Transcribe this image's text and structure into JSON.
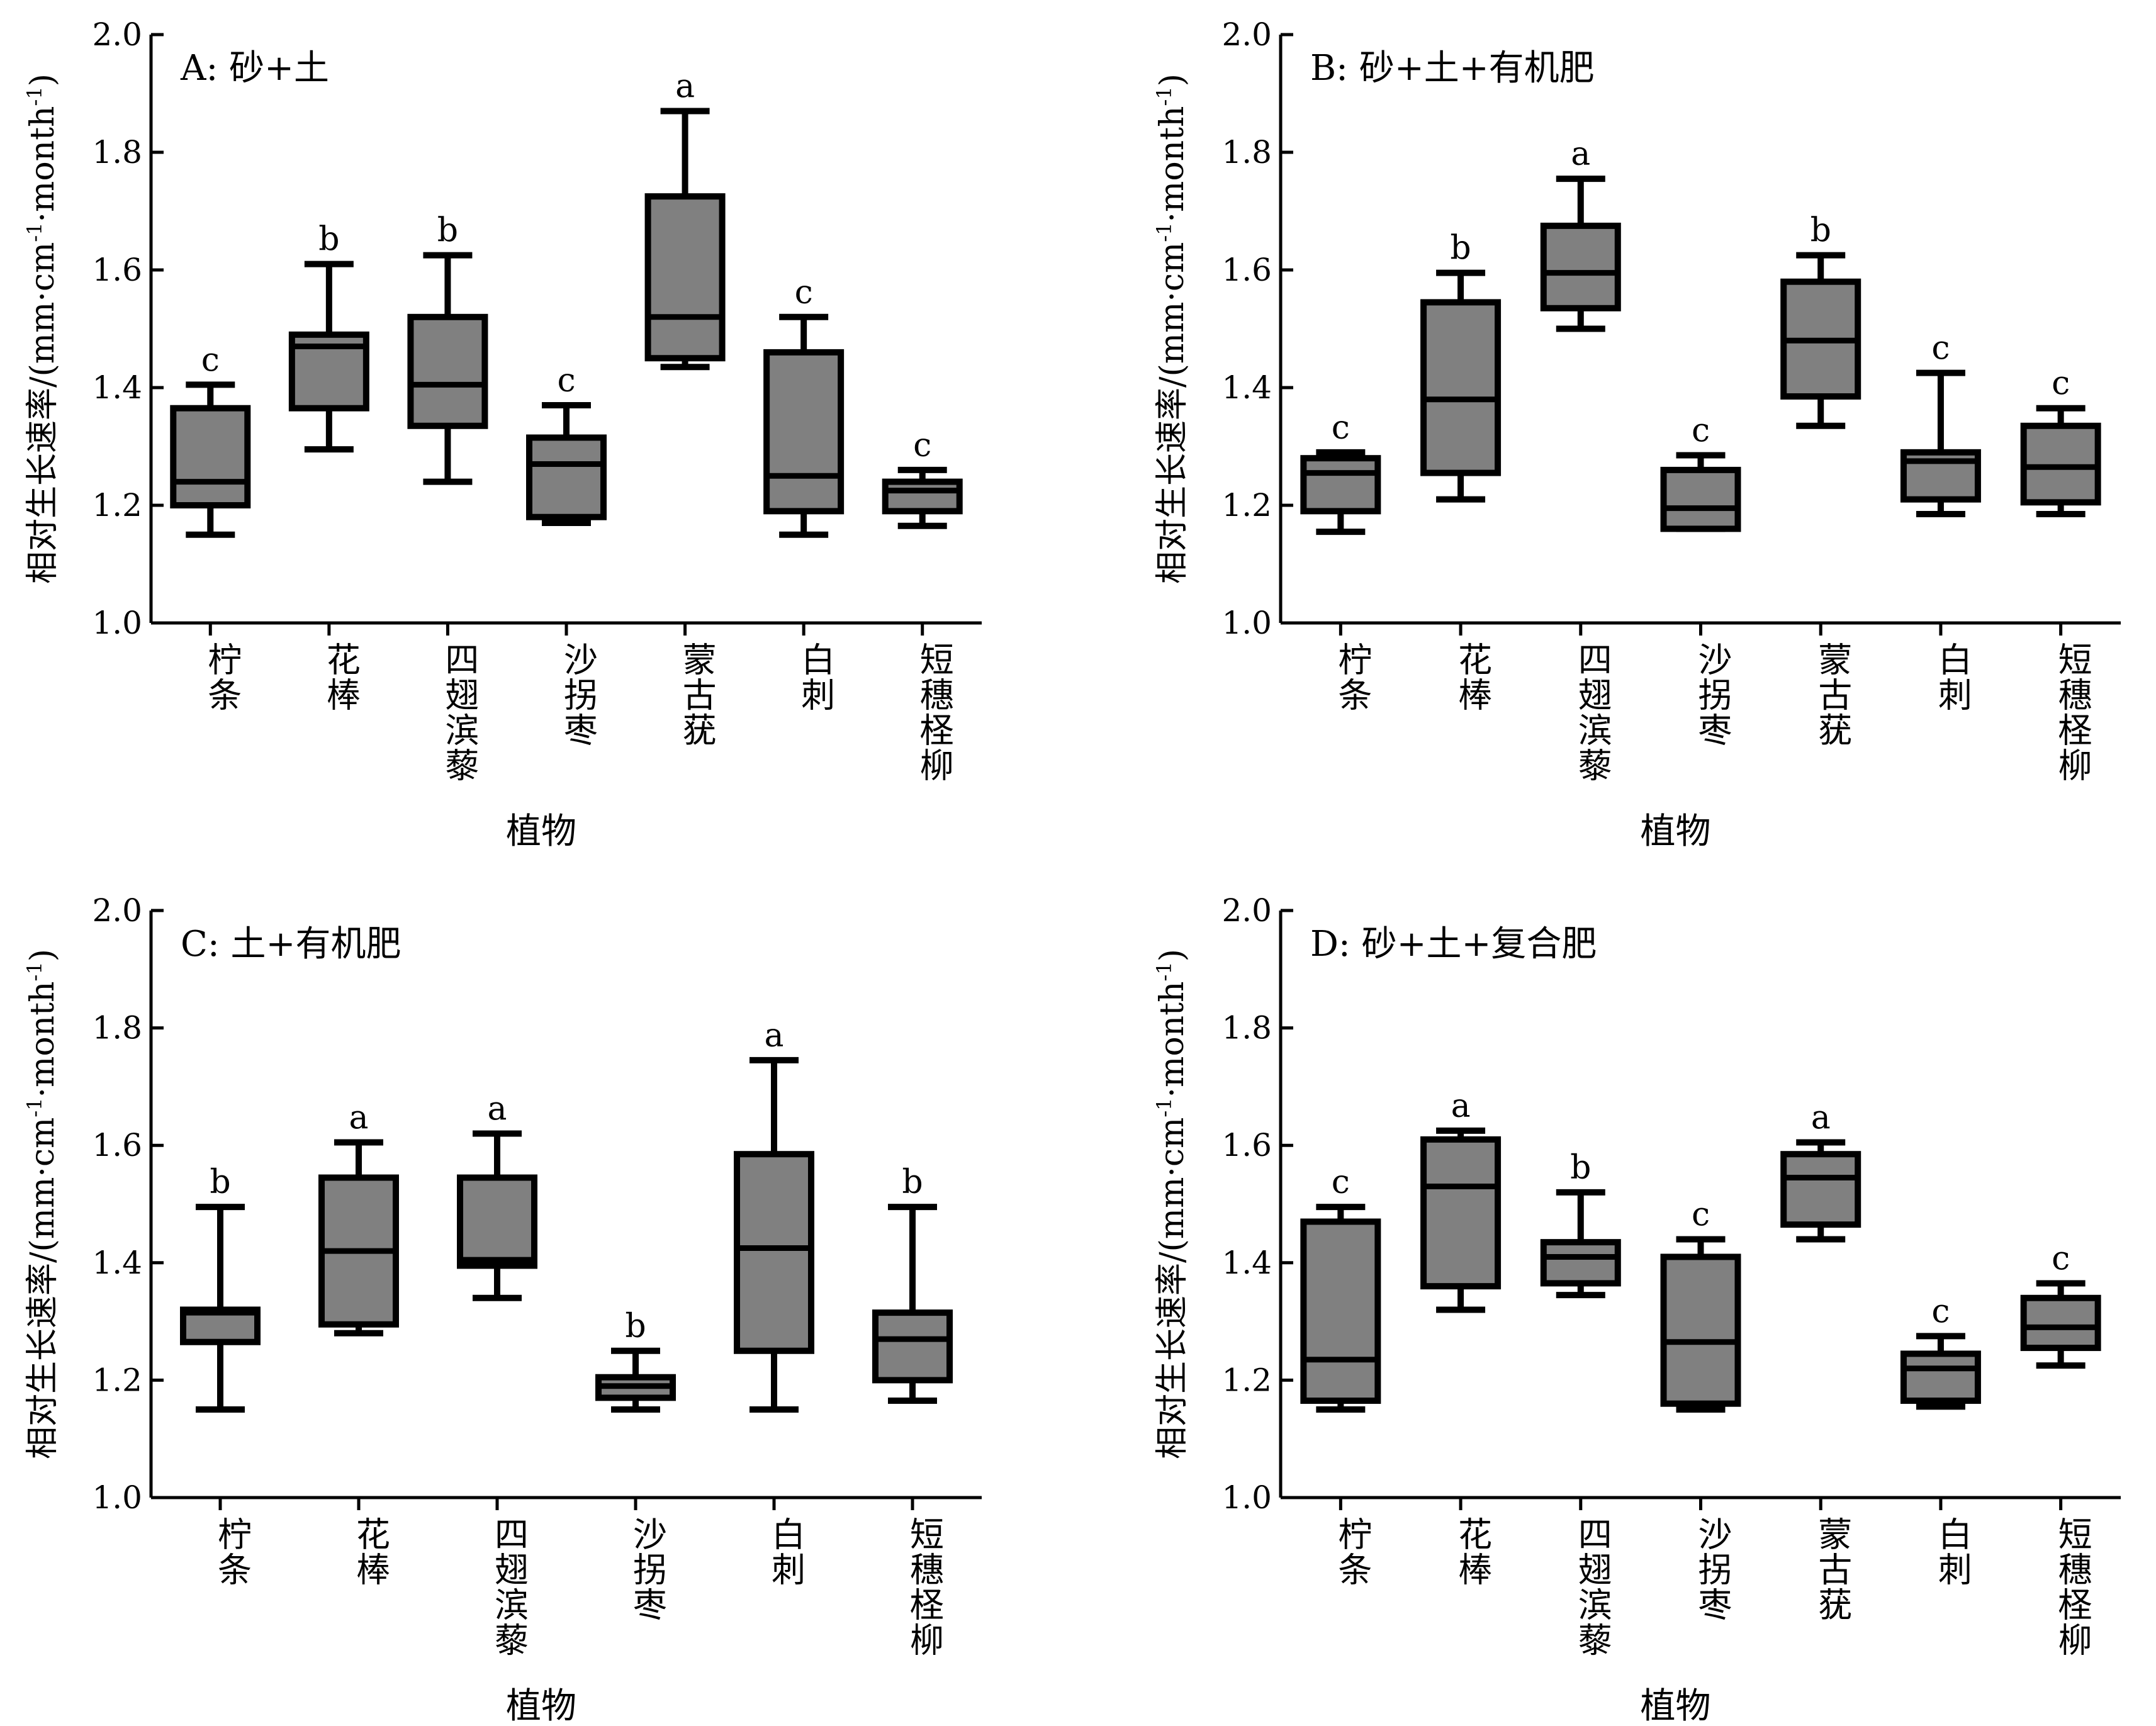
{
  "figure": {
    "y_axis_label_text": "相对生长速率/(mm·cm",
    "y_axis_label_sup1": "-1",
    "y_axis_label_mid": "·month",
    "y_axis_label_sup2": "-1",
    "y_axis_label_end": ")",
    "box_fill": "#808080",
    "stroke_color": "#000000"
  },
  "chart_data": [
    {
      "type": "box",
      "panel_label": "A: 砂+土",
      "xlabel": "植物",
      "ylim": [
        1.0,
        2.0
      ],
      "yticks": [
        "1.0",
        "1.2",
        "1.4",
        "1.6",
        "1.8",
        "2.0"
      ],
      "categories": [
        "柠条",
        "花棒",
        "四翅滨藜",
        "沙拐枣",
        "蒙古莸",
        "白刺",
        "短穗柽柳"
      ],
      "boxes": [
        {
          "min": 1.15,
          "q1": 1.2,
          "median": 1.24,
          "q3": 1.365,
          "max": 1.405,
          "letter": "c"
        },
        {
          "min": 1.295,
          "q1": 1.365,
          "median": 1.47,
          "q3": 1.49,
          "max": 1.61,
          "letter": "b"
        },
        {
          "min": 1.24,
          "q1": 1.335,
          "median": 1.405,
          "q3": 1.52,
          "max": 1.625,
          "letter": "b"
        },
        {
          "min": 1.17,
          "q1": 1.18,
          "median": 1.27,
          "q3": 1.315,
          "max": 1.37,
          "letter": "c"
        },
        {
          "min": 1.435,
          "q1": 1.45,
          "median": 1.52,
          "q3": 1.725,
          "max": 1.87,
          "letter": "a"
        },
        {
          "min": 1.15,
          "q1": 1.19,
          "median": 1.25,
          "q3": 1.46,
          "max": 1.52,
          "letter": "c"
        },
        {
          "min": 1.165,
          "q1": 1.19,
          "median": 1.225,
          "q3": 1.24,
          "max": 1.26,
          "letter": "c"
        }
      ]
    },
    {
      "type": "box",
      "panel_label": "B: 砂+土+有机肥",
      "xlabel": "植物",
      "ylim": [
        1.0,
        2.0
      ],
      "yticks": [
        "1.0",
        "1.2",
        "1.4",
        "1.6",
        "1.8",
        "2.0"
      ],
      "categories": [
        "柠条",
        "花棒",
        "四翅滨藜",
        "沙拐枣",
        "蒙古莸",
        "白刺",
        "短穗柽柳"
      ],
      "boxes": [
        {
          "min": 1.155,
          "q1": 1.19,
          "median": 1.255,
          "q3": 1.28,
          "max": 1.29,
          "letter": "c"
        },
        {
          "min": 1.21,
          "q1": 1.255,
          "median": 1.38,
          "q3": 1.545,
          "max": 1.595,
          "letter": "b"
        },
        {
          "min": 1.5,
          "q1": 1.535,
          "median": 1.595,
          "q3": 1.675,
          "max": 1.755,
          "letter": "a"
        },
        {
          "min": 1.16,
          "q1": 1.16,
          "median": 1.195,
          "q3": 1.26,
          "max": 1.285,
          "letter": "c"
        },
        {
          "min": 1.335,
          "q1": 1.385,
          "median": 1.48,
          "q3": 1.58,
          "max": 1.625,
          "letter": "b"
        },
        {
          "min": 1.185,
          "q1": 1.21,
          "median": 1.275,
          "q3": 1.29,
          "max": 1.425,
          "letter": "c"
        },
        {
          "min": 1.185,
          "q1": 1.205,
          "median": 1.265,
          "q3": 1.335,
          "max": 1.365,
          "letter": "c"
        }
      ]
    },
    {
      "type": "box",
      "panel_label": "C: 土+有机肥",
      "xlabel": "植物",
      "ylim": [
        1.0,
        2.0
      ],
      "yticks": [
        "1.0",
        "1.2",
        "1.4",
        "1.6",
        "1.8",
        "2.0"
      ],
      "categories": [
        "柠条",
        "花棒",
        "四翅滨藜",
        "沙拐枣",
        "白刺",
        "短穗柽柳"
      ],
      "boxes": [
        {
          "min": 1.15,
          "q1": 1.265,
          "median": 1.315,
          "q3": 1.32,
          "max": 1.495,
          "letter": "b"
        },
        {
          "min": 1.28,
          "q1": 1.295,
          "median": 1.42,
          "q3": 1.545,
          "max": 1.605,
          "letter": "a"
        },
        {
          "min": 1.34,
          "q1": 1.395,
          "median": 1.405,
          "q3": 1.545,
          "max": 1.62,
          "letter": "a"
        },
        {
          "min": 1.15,
          "q1": 1.17,
          "median": 1.19,
          "q3": 1.205,
          "max": 1.25,
          "letter": "b"
        },
        {
          "min": 1.15,
          "q1": 1.25,
          "median": 1.425,
          "q3": 1.585,
          "max": 1.745,
          "letter": "a"
        },
        {
          "min": 1.165,
          "q1": 1.2,
          "median": 1.27,
          "q3": 1.315,
          "max": 1.495,
          "letter": "b"
        }
      ]
    },
    {
      "type": "box",
      "panel_label": "D: 砂+土+复合肥",
      "xlabel": "植物",
      "ylim": [
        1.0,
        2.0
      ],
      "yticks": [
        "1.0",
        "1.2",
        "1.4",
        "1.6",
        "1.8",
        "2.0"
      ],
      "categories": [
        "柠条",
        "花棒",
        "四翅滨藜",
        "沙拐枣",
        "蒙古莸",
        "白刺",
        "短穗柽柳"
      ],
      "boxes": [
        {
          "min": 1.15,
          "q1": 1.165,
          "median": 1.235,
          "q3": 1.47,
          "max": 1.495,
          "letter": "c"
        },
        {
          "min": 1.32,
          "q1": 1.36,
          "median": 1.53,
          "q3": 1.61,
          "max": 1.625,
          "letter": "a"
        },
        {
          "min": 1.345,
          "q1": 1.365,
          "median": 1.41,
          "q3": 1.435,
          "max": 1.52,
          "letter": "b"
        },
        {
          "min": 1.15,
          "q1": 1.16,
          "median": 1.265,
          "q3": 1.41,
          "max": 1.44,
          "letter": "c"
        },
        {
          "min": 1.44,
          "q1": 1.465,
          "median": 1.545,
          "q3": 1.585,
          "max": 1.605,
          "letter": "a"
        },
        {
          "min": 1.155,
          "q1": 1.165,
          "median": 1.22,
          "q3": 1.245,
          "max": 1.275,
          "letter": "c"
        },
        {
          "min": 1.225,
          "q1": 1.255,
          "median": 1.29,
          "q3": 1.34,
          "max": 1.365,
          "letter": "c"
        }
      ]
    }
  ]
}
